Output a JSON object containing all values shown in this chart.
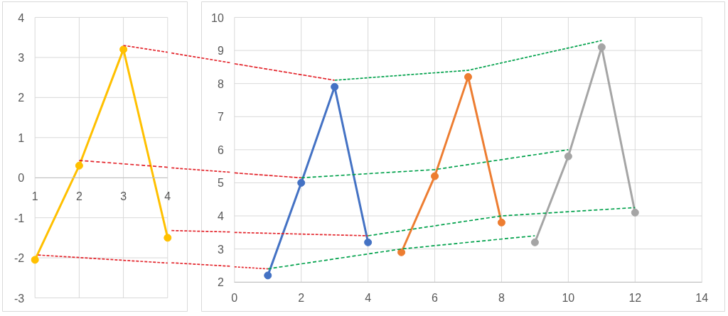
{
  "chart_data": [
    {
      "type": "line",
      "marker": "circle",
      "xlim": [
        1,
        4
      ],
      "ylim": [
        -3,
        4
      ],
      "xticks": [
        1,
        2,
        3,
        4
      ],
      "yticks": [
        -3,
        -2,
        -1,
        0,
        1,
        2,
        3,
        4
      ],
      "grid": true,
      "series": [
        {
          "color": "#ffc000",
          "x": [
            1,
            2,
            3,
            4
          ],
          "values": [
            -2.05,
            0.3,
            3.2,
            -1.5
          ]
        },
        {
          "color": "#e3242b",
          "x": [
            3,
            4
          ],
          "values": [
            3.3,
            3.13
          ],
          "marker": "none",
          "line_style": "dashed"
        },
        {
          "color": "#e3242b",
          "x": [
            2,
            4
          ],
          "values": [
            0.43,
            0.26
          ],
          "marker": "none",
          "line_style": "dashed"
        },
        {
          "color": "#e3242b",
          "x": [
            1.07,
            4
          ],
          "values": [
            -1.93,
            -2.13
          ],
          "marker": "none",
          "line_style": "dashed"
        }
      ]
    },
    {
      "type": "line",
      "marker": "circle",
      "xlim": [
        0,
        14
      ],
      "ylim": [
        2,
        10
      ],
      "xticks": [
        0,
        2,
        4,
        6,
        8,
        10,
        12,
        14
      ],
      "yticks": [
        2,
        3,
        4,
        5,
        6,
        7,
        8,
        9,
        10
      ],
      "grid": true,
      "series": [
        {
          "color": "#4472c4",
          "x": [
            1,
            2,
            3,
            4
          ],
          "values": [
            2.2,
            5,
            7.9,
            3.2
          ]
        },
        {
          "color": "#ed7d31",
          "x": [
            5,
            6,
            7,
            8
          ],
          "values": [
            2.9,
            5.2,
            8.2,
            3.8
          ]
        },
        {
          "color": "#a5a5a5",
          "x": [
            9,
            10,
            11,
            12
          ],
          "values": [
            3.2,
            5.8,
            9.1,
            4.1
          ]
        },
        {
          "color": "#00a14b",
          "x": [
            3,
            7,
            11
          ],
          "values": [
            8.1,
            8.4,
            9.3
          ],
          "marker": "none",
          "line_style": "dashed"
        },
        {
          "color": "#00a14b",
          "x": [
            2,
            6,
            10
          ],
          "values": [
            5.15,
            5.4,
            6.0
          ],
          "marker": "none",
          "line_style": "dashed"
        },
        {
          "color": "#00a14b",
          "x": [
            4,
            8,
            12
          ],
          "values": [
            3.4,
            4.0,
            4.25
          ],
          "marker": "none",
          "line_style": "dashed"
        },
        {
          "color": "#00a14b",
          "x": [
            1,
            5,
            9
          ],
          "values": [
            2.4,
            3.0,
            3.4
          ],
          "marker": "none",
          "line_style": "dashed"
        },
        {
          "color": "#e3242b",
          "x": [
            0,
            3
          ],
          "values": [
            8.6,
            8.1
          ],
          "marker": "none",
          "line_style": "dashed"
        },
        {
          "color": "#e3242b",
          "x": [
            0,
            2
          ],
          "values": [
            5.3,
            5.15
          ],
          "marker": "none",
          "line_style": "dashed"
        },
        {
          "color": "#e3242b",
          "x": [
            0,
            4
          ],
          "values": [
            3.5,
            3.4
          ],
          "marker": "none",
          "line_style": "dashed"
        },
        {
          "color": "#e3242b",
          "x": [
            0,
            1
          ],
          "values": [
            2.46,
            2.4
          ],
          "marker": "none",
          "line_style": "dashed"
        }
      ]
    }
  ]
}
